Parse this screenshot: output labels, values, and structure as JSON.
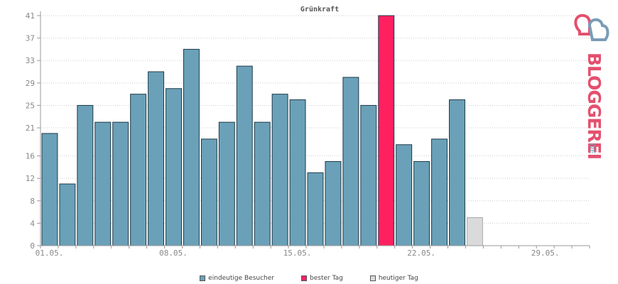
{
  "chart_data": {
    "type": "bar",
    "title": "Grünkraft",
    "ylim": [
      0,
      41
    ],
    "yticks": [
      0,
      4,
      8,
      12,
      16,
      21,
      25,
      29,
      33,
      37,
      41
    ],
    "grid": true,
    "x_tick_labels": [
      {
        "day": 1,
        "label": "01.05."
      },
      {
        "day": 8,
        "label": "08.05."
      },
      {
        "day": 15,
        "label": "15.05."
      },
      {
        "day": 22,
        "label": "22.05."
      },
      {
        "day": 29,
        "label": "29.05."
      }
    ],
    "days_in_period": 31,
    "values": [
      20,
      11,
      25,
      22,
      22,
      27,
      31,
      28,
      35,
      19,
      22,
      32,
      22,
      27,
      26,
      13,
      15,
      30,
      25,
      41,
      18,
      15,
      19,
      26,
      5
    ],
    "series_type": [
      "visitors",
      "visitors",
      "visitors",
      "visitors",
      "visitors",
      "visitors",
      "visitors",
      "visitors",
      "visitors",
      "visitors",
      "visitors",
      "visitors",
      "visitors",
      "visitors",
      "visitors",
      "visitors",
      "visitors",
      "visitors",
      "visitors",
      "best",
      "visitors",
      "visitors",
      "visitors",
      "visitors",
      "today"
    ],
    "legend_position": "bottom",
    "colors": {
      "visitors": "#6aa1b8",
      "best": "#ff2060",
      "today": "#dadada",
      "title": "#555555",
      "grid": "#cccccc",
      "axis": "#999999"
    }
  },
  "legend": [
    {
      "label": "eindeutige Besucher",
      "color": "#6aa1b8"
    },
    {
      "label": "bester Tag",
      "color": "#ff2060"
    },
    {
      "label": "heutiger Tag",
      "color": "#dadada"
    }
  ],
  "logo": {
    "text": "BLOGGEREI",
    "suffix": ".DE",
    "icon": "bloggerei-heart-icon"
  }
}
